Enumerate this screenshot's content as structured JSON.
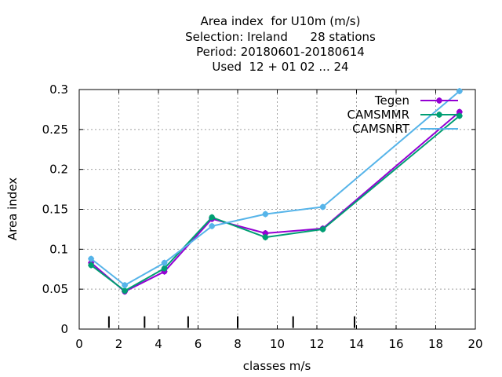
{
  "chart_data": {
    "type": "line",
    "title_lines": [
      "Area index  for U10m (m/s)",
      "Selection: Ireland      28 stations",
      "Period: 20180601-20180614",
      "Used  12 + 01 02 ... 24"
    ],
    "xlabel": "classes m/s",
    "ylabel": "Area index",
    "xlim": [
      0,
      20
    ],
    "ylim": [
      0,
      0.3
    ],
    "x_ticks": [
      0,
      2,
      4,
      6,
      8,
      10,
      12,
      14,
      16,
      18,
      20
    ],
    "x_tick_labels": [
      "0",
      "2",
      "4",
      "6",
      "8",
      "10",
      "12",
      "14",
      "16",
      "18",
      "20"
    ],
    "y_ticks": [
      0,
      0.05,
      0.1,
      0.15,
      0.2,
      0.25,
      0.3
    ],
    "y_tick_labels": [
      "0",
      "0.05",
      "0.1",
      "0.15",
      "0.2",
      "0.25",
      "0.3"
    ],
    "grid": true,
    "legend_position": "top-right",
    "class_boundaries": [
      1.5,
      3.3,
      5.5,
      8,
      10.8,
      13.9
    ],
    "series": [
      {
        "name": "Tegen",
        "color": "#9400d3",
        "x": [
          0.6,
          2.3,
          4.3,
          6.7,
          9.4,
          12.3,
          19.2
        ],
        "y": [
          0.083,
          0.047,
          0.072,
          0.138,
          0.12,
          0.126,
          0.272
        ]
      },
      {
        "name": "CAMSMMR",
        "color": "#009e73",
        "x": [
          0.6,
          2.3,
          4.3,
          6.7,
          9.4,
          12.3,
          19.2
        ],
        "y": [
          0.08,
          0.048,
          0.076,
          0.14,
          0.115,
          0.125,
          0.267
        ]
      },
      {
        "name": "CAMSNRT",
        "color": "#56b4e9",
        "x": [
          0.6,
          2.3,
          4.3,
          6.7,
          9.4,
          12.3,
          19.2
        ],
        "y": [
          0.088,
          0.055,
          0.083,
          0.129,
          0.144,
          0.153,
          0.298
        ]
      }
    ]
  }
}
